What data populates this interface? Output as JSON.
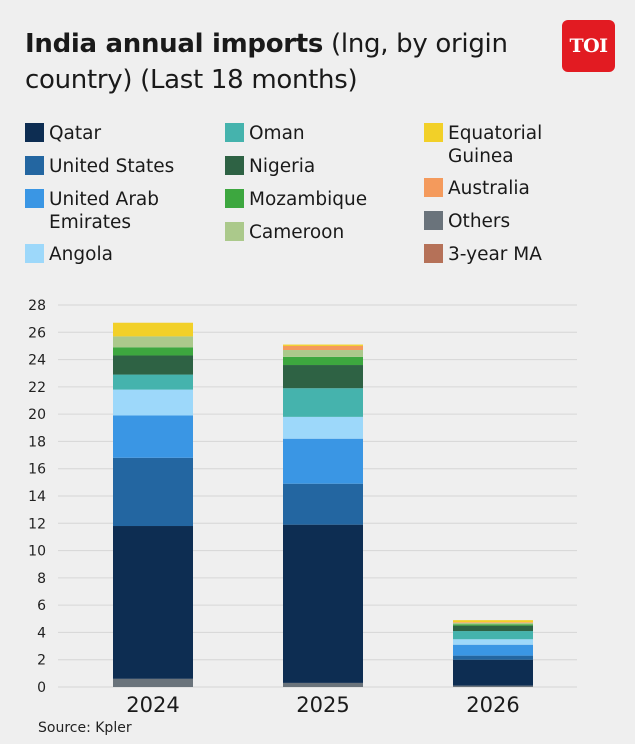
{
  "header": {
    "title_bold": "India annual imports",
    "title_rest": " (lng, by origin country) (Last 18 months)"
  },
  "logo": {
    "text": "TOI",
    "color": "#e21b22"
  },
  "source": "Source: Kpler",
  "legend": [
    {
      "label": "Qatar",
      "color": "#0d2d52"
    },
    {
      "label": "United States",
      "color": "#2366a1"
    },
    {
      "label": "United Arab\nEmirates",
      "color": "#3a96e4"
    },
    {
      "label": "Angola",
      "color": "#9dd8fa"
    },
    {
      "label": "Oman",
      "color": "#45b3ad"
    },
    {
      "label": "Nigeria",
      "color": "#2e6244"
    },
    {
      "label": "Mozambique",
      "color": "#3da73f"
    },
    {
      "label": "Cameroon",
      "color": "#abc98b"
    },
    {
      "label": "Equatorial\nGuinea",
      "color": "#f2d028"
    },
    {
      "label": "Australia",
      "color": "#f49a5c"
    },
    {
      "label": "Others",
      "color": "#6a737b"
    },
    {
      "label": "3-year MA",
      "color": "#b57158"
    }
  ],
  "chart_data": {
    "type": "bar",
    "stacked": true,
    "categories": [
      "2024",
      "2025",
      "2026"
    ],
    "ylim": [
      0,
      28
    ],
    "yticks": [
      0,
      2,
      4,
      6,
      8,
      10,
      12,
      14,
      16,
      18,
      20,
      22,
      24,
      26,
      28
    ],
    "grid": true,
    "legend_position": "top",
    "stack_order_bottom_to_top": [
      "Others",
      "Qatar",
      "United States",
      "United Arab Emirates",
      "Angola",
      "Oman",
      "Nigeria",
      "Mozambique",
      "Cameroon",
      "Australia",
      "Equatorial Guinea"
    ],
    "series": [
      {
        "name": "Others",
        "color": "#6a737b",
        "values": [
          0.6,
          0.3,
          0.1
        ]
      },
      {
        "name": "Qatar",
        "color": "#0d2d52",
        "values": [
          11.2,
          11.6,
          1.9
        ]
      },
      {
        "name": "United States",
        "color": "#2366a1",
        "values": [
          5.0,
          3.0,
          0.3
        ]
      },
      {
        "name": "United Arab Emirates",
        "color": "#3a96e4",
        "values": [
          3.1,
          3.3,
          0.8
        ]
      },
      {
        "name": "Angola",
        "color": "#9dd8fa",
        "values": [
          1.9,
          1.6,
          0.4
        ]
      },
      {
        "name": "Oman",
        "color": "#45b3ad",
        "values": [
          1.1,
          2.1,
          0.6
        ]
      },
      {
        "name": "Nigeria",
        "color": "#2e6244",
        "values": [
          1.4,
          1.7,
          0.4
        ]
      },
      {
        "name": "Mozambique",
        "color": "#3da73f",
        "values": [
          0.6,
          0.6,
          0.1
        ]
      },
      {
        "name": "Cameroon",
        "color": "#abc98b",
        "values": [
          0.8,
          0.5,
          0.1
        ]
      },
      {
        "name": "Australia",
        "color": "#f49a5c",
        "values": [
          0,
          0.3,
          0.05
        ]
      },
      {
        "name": "Equatorial Guinea",
        "color": "#f2d028",
        "values": [
          1.0,
          0.1,
          0.15
        ]
      }
    ]
  }
}
